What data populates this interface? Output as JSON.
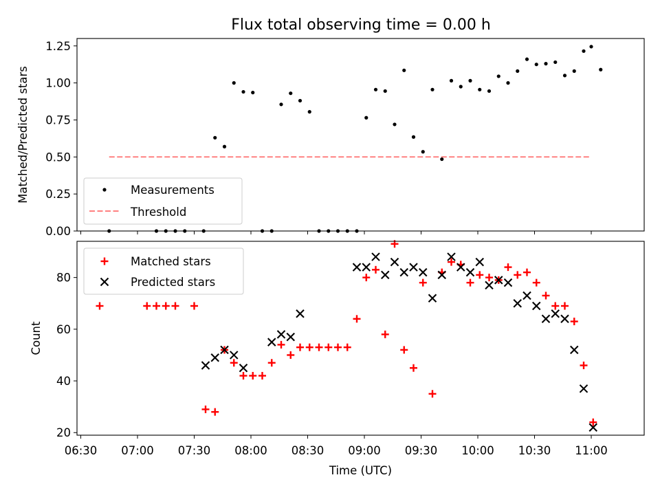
{
  "chart_data": [
    {
      "type": "scatter",
      "title": "Flux total observing time = 0.00 h",
      "xlabel": "",
      "ylabel": "Matched/Predicted stars",
      "ylim": [
        0,
        1.3
      ],
      "yticks": [
        "0.00",
        "0.25",
        "0.50",
        "0.75",
        "1.00",
        "1.25"
      ],
      "ytick_values": [
        0,
        0.25,
        0.5,
        0.75,
        1.0,
        1.25
      ],
      "legend_position": "lower-left",
      "threshold": {
        "name": "Threshold",
        "value": 0.5,
        "x_start": "06:45",
        "x_end": "11:00",
        "color": "#ff8080"
      },
      "series": [
        {
          "name": "Measurements",
          "color": "#000000",
          "points": [
            [
              "06:45",
              0.0
            ],
            [
              "07:10",
              0.0
            ],
            [
              "07:15",
              0.0
            ],
            [
              "07:20",
              0.0
            ],
            [
              "07:25",
              0.0
            ],
            [
              "07:35",
              0.0
            ],
            [
              "07:41",
              0.63
            ],
            [
              "07:46",
              0.57
            ],
            [
              "07:51",
              1.0
            ],
            [
              "07:56",
              0.94
            ],
            [
              "08:01",
              0.935
            ],
            [
              "08:06",
              0.0
            ],
            [
              "08:11",
              0.0
            ],
            [
              "08:16",
              0.855
            ],
            [
              "08:21",
              0.93
            ],
            [
              "08:26",
              0.88
            ],
            [
              "08:31",
              0.805
            ],
            [
              "08:36",
              0.0
            ],
            [
              "08:41",
              0.0
            ],
            [
              "08:46",
              0.0
            ],
            [
              "08:51",
              0.0
            ],
            [
              "08:56",
              0.0
            ],
            [
              "09:01",
              0.765
            ],
            [
              "09:06",
              0.955
            ],
            [
              "09:11",
              0.945
            ],
            [
              "09:16",
              0.72
            ],
            [
              "09:21",
              1.085
            ],
            [
              "09:26",
              0.635
            ],
            [
              "09:31",
              0.535
            ],
            [
              "09:36",
              0.955
            ],
            [
              "09:41",
              0.485
            ],
            [
              "09:46",
              1.015
            ],
            [
              "09:51",
              0.975
            ],
            [
              "09:56",
              1.015
            ],
            [
              "10:01",
              0.955
            ],
            [
              "10:06",
              0.945
            ],
            [
              "10:11",
              1.045
            ],
            [
              "10:16",
              1.0
            ],
            [
              "10:21",
              1.08
            ],
            [
              "10:26",
              1.16
            ],
            [
              "10:31",
              1.125
            ],
            [
              "10:36",
              1.13
            ],
            [
              "10:41",
              1.14
            ],
            [
              "10:46",
              1.05
            ],
            [
              "10:51",
              1.08
            ],
            [
              "10:56",
              1.215
            ],
            [
              "11:00",
              1.245
            ],
            [
              "11:05",
              1.09
            ]
          ]
        }
      ]
    },
    {
      "type": "scatter",
      "title": "",
      "xlabel": "Time (UTC)",
      "ylabel": "Count",
      "xlim": [
        "06:28",
        "11:28"
      ],
      "xticks": [
        "06:30",
        "07:00",
        "07:30",
        "08:00",
        "08:30",
        "09:00",
        "09:30",
        "10:00",
        "10:30",
        "11:00"
      ],
      "ylim": [
        19,
        94
      ],
      "yticks": [
        "20",
        "40",
        "60",
        "80"
      ],
      "ytick_values": [
        20,
        40,
        60,
        80
      ],
      "legend_position": "upper-left",
      "series": [
        {
          "name": "Matched stars",
          "marker": "plus",
          "color": "#ff0000",
          "points": [
            [
              "06:40",
              69
            ],
            [
              "07:05",
              69
            ],
            [
              "07:10",
              69
            ],
            [
              "07:15",
              69
            ],
            [
              "07:20",
              69
            ],
            [
              "07:30",
              69
            ],
            [
              "07:36",
              29
            ],
            [
              "07:41",
              28
            ],
            [
              "07:46",
              52
            ],
            [
              "07:51",
              47
            ],
            [
              "07:56",
              42
            ],
            [
              "08:01",
              42
            ],
            [
              "08:06",
              42
            ],
            [
              "08:11",
              47
            ],
            [
              "08:16",
              54
            ],
            [
              "08:21",
              50
            ],
            [
              "08:26",
              53
            ],
            [
              "08:31",
              53
            ],
            [
              "08:36",
              53
            ],
            [
              "08:41",
              53
            ],
            [
              "08:46",
              53
            ],
            [
              "08:51",
              53
            ],
            [
              "08:56",
              64
            ],
            [
              "09:01",
              80
            ],
            [
              "09:06",
              83
            ],
            [
              "09:11",
              58
            ],
            [
              "09:16",
              93
            ],
            [
              "09:21",
              52
            ],
            [
              "09:26",
              45
            ],
            [
              "09:31",
              78
            ],
            [
              "09:36",
              35
            ],
            [
              "09:41",
              82
            ],
            [
              "09:46",
              86
            ],
            [
              "09:51",
              85
            ],
            [
              "09:56",
              78
            ],
            [
              "10:01",
              81
            ],
            [
              "10:06",
              80
            ],
            [
              "10:11",
              79
            ],
            [
              "10:16",
              84
            ],
            [
              "10:21",
              81
            ],
            [
              "10:26",
              82
            ],
            [
              "10:31",
              78
            ],
            [
              "10:36",
              73
            ],
            [
              "10:41",
              69
            ],
            [
              "10:46",
              69
            ],
            [
              "10:51",
              63
            ],
            [
              "10:56",
              46
            ],
            [
              "11:01",
              24
            ]
          ]
        },
        {
          "name": "Predicted stars",
          "marker": "x",
          "color": "#000000",
          "points": [
            [
              "07:36",
              46
            ],
            [
              "07:41",
              49
            ],
            [
              "07:46",
              52
            ],
            [
              "07:51",
              50
            ],
            [
              "07:56",
              45
            ],
            [
              "08:11",
              55
            ],
            [
              "08:16",
              58
            ],
            [
              "08:21",
              57
            ],
            [
              "08:26",
              66
            ],
            [
              "08:56",
              84
            ],
            [
              "09:01",
              84
            ],
            [
              "09:06",
              88
            ],
            [
              "09:11",
              81
            ],
            [
              "09:16",
              86
            ],
            [
              "09:21",
              82
            ],
            [
              "09:26",
              84
            ],
            [
              "09:31",
              82
            ],
            [
              "09:36",
              72
            ],
            [
              "09:41",
              81
            ],
            [
              "09:46",
              88
            ],
            [
              "09:51",
              84
            ],
            [
              "09:56",
              82
            ],
            [
              "10:01",
              86
            ],
            [
              "10:06",
              77
            ],
            [
              "10:11",
              79
            ],
            [
              "10:16",
              78
            ],
            [
              "10:21",
              70
            ],
            [
              "10:26",
              73
            ],
            [
              "10:31",
              69
            ],
            [
              "10:36",
              64
            ],
            [
              "10:41",
              66
            ],
            [
              "10:46",
              64
            ],
            [
              "10:51",
              52
            ],
            [
              "10:56",
              37
            ],
            [
              "11:01",
              22
            ]
          ]
        }
      ]
    }
  ]
}
